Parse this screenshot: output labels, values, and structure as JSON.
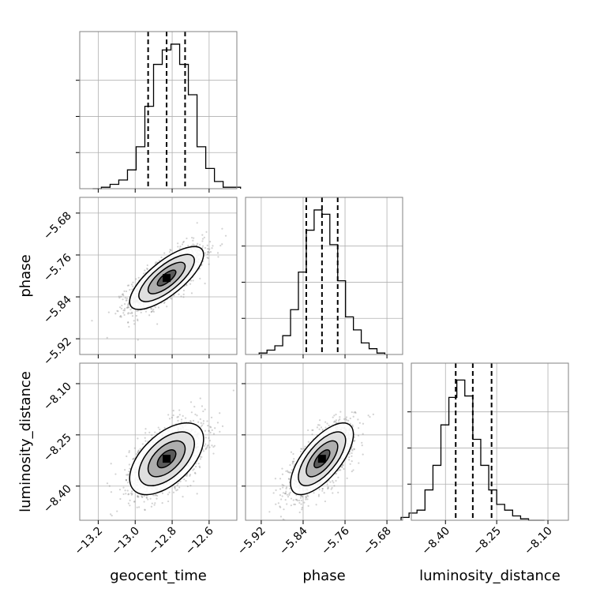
{
  "chart_data": {
    "type": "corner",
    "parameters": [
      "geocent_time",
      "phase",
      "luminosity_distance"
    ],
    "axis_labels": {
      "geocent_time": "geocent_time",
      "phase": "phase",
      "luminosity_distance": "luminosity_distance"
    },
    "ranges": {
      "geocent_time": [
        -13.3,
        -12.45
      ],
      "phase": [
        -5.95,
        -5.65
      ],
      "luminosity_distance": [
        -8.5,
        -8.04
      ]
    },
    "ticks": {
      "geocent_time": [
        -13.2,
        -13.0,
        -12.8,
        -12.6
      ],
      "phase": [
        -5.92,
        -5.84,
        -5.76,
        -5.68
      ],
      "luminosity_distance": [
        -8.4,
        -8.25,
        -8.1
      ]
    },
    "tick_labels": {
      "geocent_time": [
        "−13.2",
        "−13.0",
        "−12.8",
        "−12.6"
      ],
      "phase": [
        "−5.92",
        "−5.84",
        "−5.76",
        "−5.68"
      ],
      "luminosity_distance": [
        "−8.40",
        "−8.25",
        "−8.10"
      ]
    },
    "quantiles": {
      "geocent_time": [
        -12.93,
        -12.83,
        -12.73
      ],
      "phase": [
        -5.834,
        -5.804,
        -5.774
      ],
      "luminosity_distance": [
        -8.37,
        -8.32,
        -8.265
      ]
    },
    "histograms": {
      "geocent_time": [
        0.0,
        0.01,
        0.03,
        0.06,
        0.13,
        0.29,
        0.57,
        0.86,
        0.96,
        1.0,
        0.86,
        0.65,
        0.29,
        0.14,
        0.05,
        0.01,
        0.01
      ],
      "phase": [
        0.01,
        0.03,
        0.06,
        0.13,
        0.31,
        0.57,
        0.86,
        1.0,
        0.97,
        0.76,
        0.51,
        0.26,
        0.17,
        0.08,
        0.04,
        0.01
      ],
      "luminosity_distance": [
        0.02,
        0.05,
        0.07,
        0.21,
        0.38,
        0.66,
        0.85,
        0.97,
        0.86,
        0.56,
        0.38,
        0.21,
        0.11,
        0.07,
        0.03,
        0.01,
        0.0,
        0.0
      ]
    },
    "pair_correlation": {
      "phase|geocent_time": 0.75,
      "luminosity_distance|geocent_time": 0.55,
      "luminosity_distance|phase": 0.68
    },
    "samples_per_panel": 1500,
    "grid": true,
    "legend": "none",
    "colors": {
      "line": "#000000",
      "grid": "#b0b0b0",
      "points": "#7f7f7f",
      "spine": "#808080"
    }
  }
}
